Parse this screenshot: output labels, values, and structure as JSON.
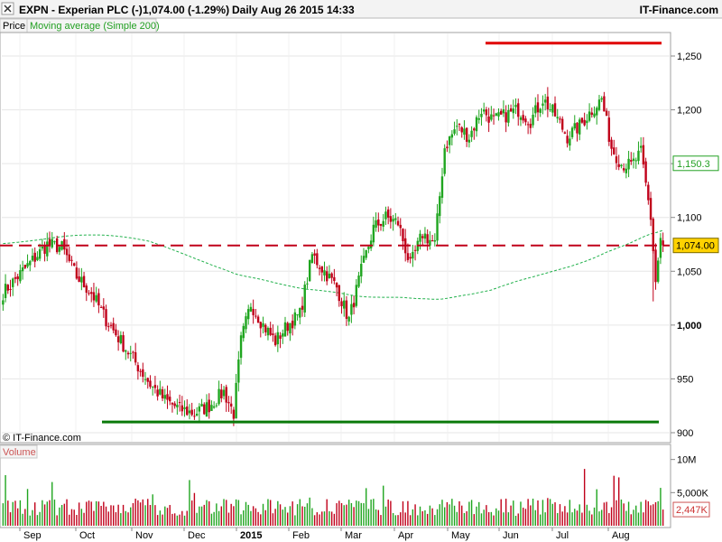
{
  "header": {
    "title": "EXPN - Experian PLC (-)",
    "quote": "1,074.00 (-1.29%)",
    "interval_time": "Daily  Aug 26 2015 14:33",
    "site": "IT-Finance.com"
  },
  "legend": {
    "price": "Price",
    "ma": "Moving average (Simple 200)",
    "volume": "Volume"
  },
  "watermark": "© IT-Finance.com",
  "colors": {
    "up": "#1fa51f",
    "down": "#c0001a",
    "ma": "#22b14c",
    "support": "#0a7a0a",
    "resistance": "#e00000",
    "current_bg": "#ffd200",
    "ma_label": "#22a022"
  },
  "chart_data": {
    "type": "candlestick",
    "title": "EXPN - Experian PLC (-)",
    "price_axis": {
      "ticks": [
        900,
        950,
        1000,
        1050,
        1100,
        1150,
        1200,
        1250
      ],
      "tick_labels": [
        "900",
        "950",
        "1,000",
        "1,050",
        "1,100",
        "1,150",
        "1,200",
        "1,250"
      ],
      "range": [
        898,
        1280
      ]
    },
    "volume_axis": {
      "ticks": [
        5000,
        10000
      ],
      "tick_labels": [
        "5,000K",
        "10M"
      ],
      "range": [
        0,
        12000
      ]
    },
    "x_axis": {
      "labels": [
        "Sep",
        "Oct",
        "Nov",
        "Dec",
        "2015",
        "Feb",
        "Mar",
        "Apr",
        "May",
        "Jun",
        "Jul",
        "Aug"
      ],
      "days": 270
    },
    "current_price": 1074.0,
    "current_label": "1,074.00",
    "ma_value": 1150.3,
    "ma_label": "1,150.3",
    "volume_last_label": "2,447K",
    "support_level": 910,
    "resistance_level": 1262,
    "anchors": [
      {
        "d": 0,
        "p": 1030
      },
      {
        "d": 6,
        "p": 1045
      },
      {
        "d": 12,
        "p": 1060
      },
      {
        "d": 18,
        "p": 1075
      },
      {
        "d": 24,
        "p": 1072
      },
      {
        "d": 30,
        "p": 1045
      },
      {
        "d": 36,
        "p": 1030
      },
      {
        "d": 42,
        "p": 1005
      },
      {
        "d": 48,
        "p": 985
      },
      {
        "d": 54,
        "p": 965
      },
      {
        "d": 60,
        "p": 945
      },
      {
        "d": 66,
        "p": 930
      },
      {
        "d": 72,
        "p": 922
      },
      {
        "d": 78,
        "p": 918
      },
      {
        "d": 84,
        "p": 925
      },
      {
        "d": 90,
        "p": 938
      },
      {
        "d": 94,
        "p": 918
      },
      {
        "d": 97,
        "p": 985
      },
      {
        "d": 101,
        "p": 1020
      },
      {
        "d": 106,
        "p": 1000
      },
      {
        "d": 111,
        "p": 985
      },
      {
        "d": 116,
        "p": 1000
      },
      {
        "d": 121,
        "p": 1010
      },
      {
        "d": 126,
        "p": 1065
      },
      {
        "d": 131,
        "p": 1050
      },
      {
        "d": 136,
        "p": 1035
      },
      {
        "d": 141,
        "p": 1005
      },
      {
        "d": 146,
        "p": 1050
      },
      {
        "d": 151,
        "p": 1090
      },
      {
        "d": 156,
        "p": 1100
      },
      {
        "d": 161,
        "p": 1095
      },
      {
        "d": 166,
        "p": 1055
      },
      {
        "d": 171,
        "p": 1085
      },
      {
        "d": 176,
        "p": 1075
      },
      {
        "d": 180,
        "p": 1165
      },
      {
        "d": 185,
        "p": 1185
      },
      {
        "d": 190,
        "p": 1175
      },
      {
        "d": 195,
        "p": 1200
      },
      {
        "d": 200,
        "p": 1190
      },
      {
        "d": 205,
        "p": 1195
      },
      {
        "d": 210,
        "p": 1200
      },
      {
        "d": 215,
        "p": 1190
      },
      {
        "d": 220,
        "p": 1210
      },
      {
        "d": 225,
        "p": 1195
      },
      {
        "d": 230,
        "p": 1175
      },
      {
        "d": 235,
        "p": 1185
      },
      {
        "d": 240,
        "p": 1200
      }
    ]
  }
}
